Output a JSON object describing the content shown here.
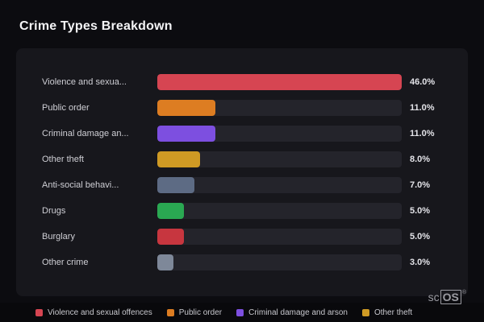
{
  "page": {
    "title": "Crime Types Breakdown"
  },
  "chart_data": {
    "type": "bar",
    "orientation": "horizontal",
    "title": "Crime Types Breakdown",
    "max_value": 46,
    "categories": [
      "Violence and sexua...",
      "Public order",
      "Criminal damage an...",
      "Other theft",
      "Anti-social behavi...",
      "Drugs",
      "Burglary",
      "Other crime"
    ],
    "values": [
      46.0,
      11.0,
      11.0,
      8.0,
      7.0,
      5.0,
      5.0,
      3.0
    ],
    "value_labels": [
      "46.0%",
      "11.0%",
      "11.0%",
      "8.0%",
      "7.0%",
      "5.0%",
      "5.0%",
      "3.0%"
    ],
    "bar_colors": [
      "#d64552",
      "#dd7d22",
      "#7d4fe0",
      "#cf9a24",
      "#5d6b84",
      "#2aa852",
      "#c7363f",
      "#7e8899"
    ],
    "legend_position": "bottom",
    "legend": [
      {
        "label": "Violence and sexual offences",
        "color": "#d64552"
      },
      {
        "label": "Public order",
        "color": "#dd7d22"
      },
      {
        "label": "Criminal damage and arson",
        "color": "#7d4fe0"
      },
      {
        "label": "Other theft",
        "color": "#cf9a24"
      }
    ]
  },
  "watermark": {
    "prefix": "sc",
    "box": "OS",
    "reg": "®"
  }
}
